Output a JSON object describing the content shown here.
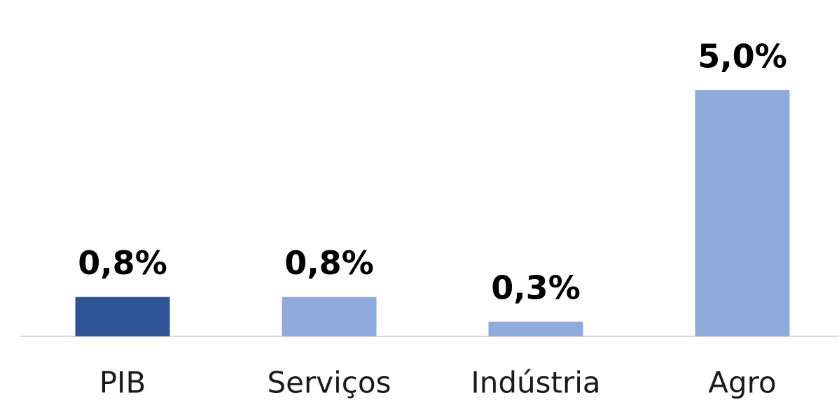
{
  "chart_data": {
    "type": "bar",
    "categories": [
      "PIB",
      "Serviços",
      "Indústria",
      "Agro"
    ],
    "values": [
      0.8,
      0.8,
      0.3,
      5.0
    ],
    "value_labels": [
      "0,8%",
      "0,8%",
      "0,3%",
      "5,0%"
    ],
    "colors": [
      "#2f5597",
      "#8faadc",
      "#8faadc",
      "#8faadc"
    ]
  }
}
